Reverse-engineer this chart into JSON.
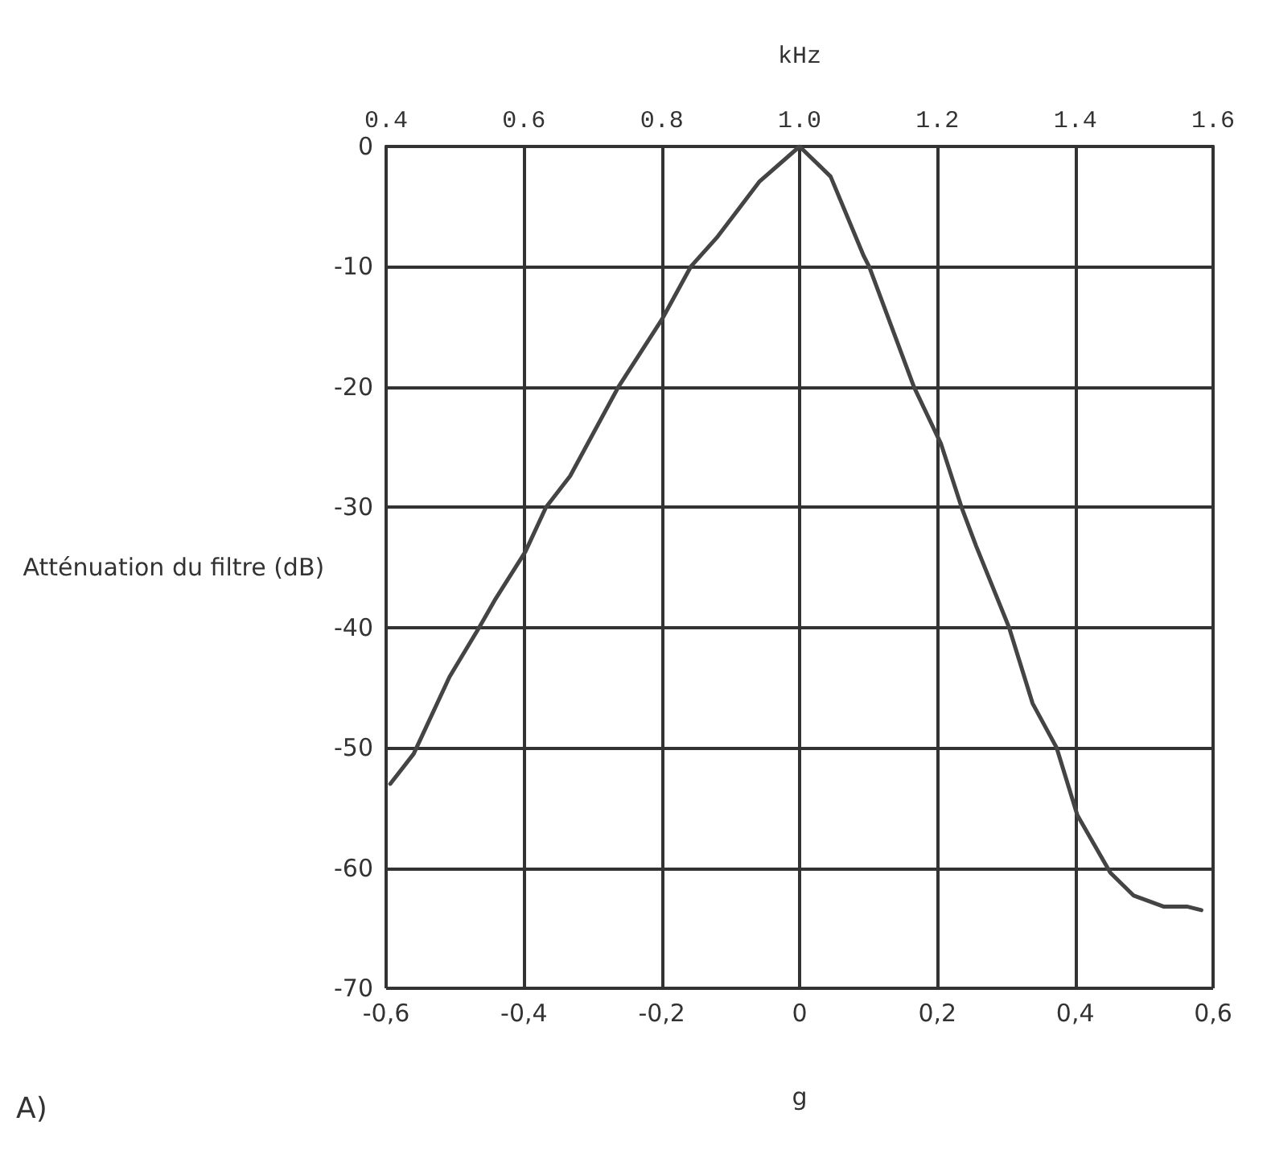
{
  "chart_data": {
    "type": "line",
    "xlabel": "g",
    "x2label": "kHz",
    "ylabel": "Atténuation du filtre (dB)",
    "annotations": [
      "A)"
    ],
    "x": [
      -0.594,
      -0.56,
      -0.508,
      -0.465,
      -0.441,
      -0.398,
      -0.368,
      -0.333,
      -0.263,
      -0.2,
      -0.158,
      -0.119,
      -0.058,
      0,
      0.045,
      0.093,
      0.101,
      0.166,
      0.205,
      0.235,
      0.256,
      0.304,
      0.338,
      0.373,
      0.403,
      0.451,
      0.485,
      0.528,
      0.562,
      0.583
    ],
    "series": [
      {
        "color": "#444444",
        "values": [
          -53,
          -50.5,
          -44.1,
          -40,
          -37.6,
          -33.7,
          -30,
          -27.4,
          -20,
          -14.4,
          -10,
          -7.5,
          -2.9,
          0,
          -2.5,
          -9.1,
          -10,
          -20,
          -24.7,
          -30,
          -33.2,
          -40,
          -46.3,
          -50,
          -55.6,
          -60.4,
          -62.3,
          -63.2,
          -63.2,
          -63.5
        ]
      }
    ],
    "xlim": [
      -0.6,
      0.6
    ],
    "xticks": [
      {
        "value": -0.6,
        "label": "-0,6"
      },
      {
        "value": -0.4,
        "label": "-0,4"
      },
      {
        "value": -0.2,
        "label": "-0,2"
      },
      0,
      {
        "value": 0.2,
        "label": "0,2"
      },
      {
        "value": 0.4,
        "label": "0,4"
      },
      {
        "value": 0.6,
        "label": "0,6"
      }
    ],
    "x2lim": [
      0.4,
      1.6
    ],
    "x2ticks": [
      0.4,
      0.6,
      0.8,
      {
        "value": 1.0,
        "label": "1.0"
      },
      1.2,
      1.4,
      1.6
    ],
    "ylim": [
      -70,
      0
    ],
    "yticks": [
      -70,
      -60,
      -50,
      -40,
      -30,
      -20,
      -10,
      0
    ],
    "grid": true,
    "marker": "none",
    "line_style": "solid"
  }
}
